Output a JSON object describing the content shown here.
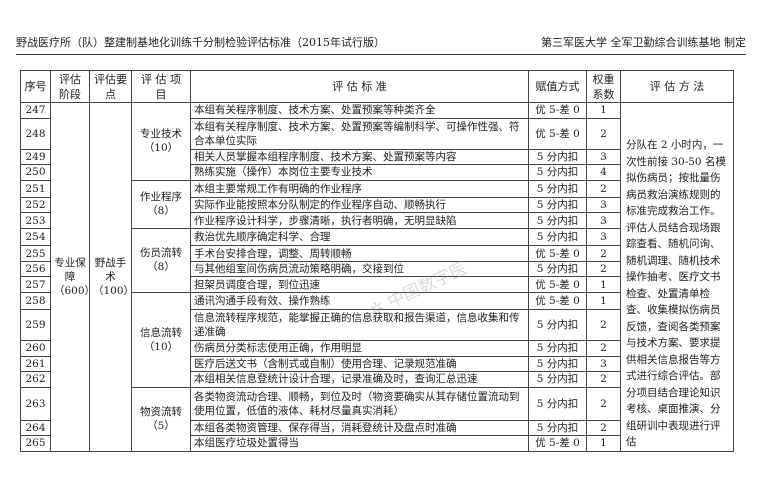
{
  "header": {
    "title": "野战医疗所（队）整建制基地化训练千分制检验评估标准（2015年试行版）",
    "issuer": "第三军医大学 全军卫勤综合训练基地 制定"
  },
  "table": {
    "columns": [
      "序号",
      "评估阶段",
      "评估要点",
      "评 估 项 目",
      "评 估 标 准",
      "赋值方式",
      "权重系数",
      "评 估 方 法"
    ],
    "stage": "专业保障（600）",
    "point": "野战手术（100）",
    "items": [
      "专业技术（10）",
      "作业程序（8）",
      "伤员流转（8）",
      "信息流转（10）",
      "物资流转（5）"
    ],
    "rows": [
      {
        "no": "247",
        "standard": "本组有关程序制度、技术方案、处置预案等种类齐全",
        "mode": "优 5-差 0",
        "weight": "1"
      },
      {
        "no": "248",
        "standard": "本组有关程序制度、技术方案、处置预案等编制科学、可操作性强、符合本单位实际",
        "mode": "优 5-差 0",
        "weight": "2"
      },
      {
        "no": "249",
        "standard": "相关人员掌握本组程序制度、技术方案、处置预案等内容",
        "mode": "5 分内扣",
        "weight": "3"
      },
      {
        "no": "250",
        "standard": "熟练实施（操作）本岗位主要专业技术",
        "mode": "5 分内扣",
        "weight": "4"
      },
      {
        "no": "251",
        "standard": "本组主要常规工作有明确的作业程序",
        "mode": "5 分内扣",
        "weight": "2"
      },
      {
        "no": "252",
        "standard": "实际作业能按照本分队制定的作业程序自动、顺畅执行",
        "mode": "5 分内扣",
        "weight": "3"
      },
      {
        "no": "253",
        "standard": "作业程序设计科学，步骤清晰，执行者明确，无明显缺陷",
        "mode": "5 分内扣",
        "weight": "3"
      },
      {
        "no": "254",
        "standard": "救治优先顺序确定科学、合理",
        "mode": "5 分内扣",
        "weight": "3"
      },
      {
        "no": "255",
        "standard": "手术台安排合理，调整、周转顺畅",
        "mode": "优 5-差 0",
        "weight": "2"
      },
      {
        "no": "256",
        "standard": "与其他组室间伤病员流动策略明确，交接到位",
        "mode": "5 分内扣",
        "weight": "2"
      },
      {
        "no": "257",
        "standard": "担架员调度合理，到位迅速",
        "mode": "优 5-差 0",
        "weight": "1"
      },
      {
        "no": "258",
        "standard": "通讯沟通手段有效、操作熟练",
        "mode": "优 5-差 0",
        "weight": "1"
      },
      {
        "no": "259",
        "standard": "信息流转程序规范，能掌握正确的信息获取和报告渠道，信息收集和传递准确",
        "mode": "5 分内扣",
        "weight": "2"
      },
      {
        "no": "260",
        "standard": "伤病员分类标志使用正确，作用明显",
        "mode": "5 分内扣",
        "weight": "2"
      },
      {
        "no": "261",
        "standard": "医疗后送文书（含制式或自制）使用合理、记录规范准确",
        "mode": "5 分内扣",
        "weight": "3"
      },
      {
        "no": "262",
        "standard": "本组相关信息登统计设计合理，记录准确及时，查询汇总迅速",
        "mode": "5 分内扣",
        "weight": "2"
      },
      {
        "no": "263",
        "standard": "各类物资流动合理、顺畅，到位及时（物资要确实从其存储位置流动到使用位置，低值的液体、耗材尽量真实消耗）",
        "mode": "5 分内扣",
        "weight": "2"
      },
      {
        "no": "264",
        "standard": "本组各类物资管理、保存得当，消耗登统计及盘点时准确",
        "mode": "5 分内扣",
        "weight": "2"
      },
      {
        "no": "265",
        "standard": "本组医疗垃圾处置得当",
        "mode": "优 5-差 0",
        "weight": "1"
      }
    ],
    "method": "分队在 2 小时内，一次性前接 30-50 名模拟伤病员；按批量伤病员救治演练规则的标准完成救治工作。评估人员结合现场跟踪查看、随机问询、随机调理、随机技术操作抽考、医疗文书检查、处置清单检查、收集模拟伤病员反馈，查阅各类预案与技术方案、要求提供相关信息报告等方式进行综合评估。部分项目结合理论知识考核、桌面推演、分组研训中表现进行评估"
  },
  "watermark": "中国数字医"
}
